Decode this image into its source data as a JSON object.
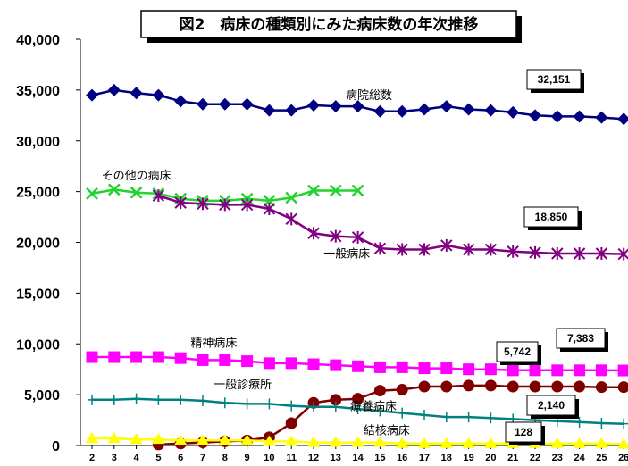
{
  "chart_data": {
    "type": "line",
    "title": "図2　病床の種類別にみた病床数の年次推移",
    "ylim": [
      0,
      40000
    ],
    "yticks": [
      0,
      5000,
      10000,
      15000,
      20000,
      25000,
      30000,
      35000,
      40000
    ],
    "ytick_labels": [
      "0",
      "5,000",
      "10,000",
      "15,000",
      "20,000",
      "25,000",
      "30,000",
      "35,000",
      "40,000"
    ],
    "x": [
      2,
      3,
      4,
      5,
      6,
      7,
      8,
      9,
      10,
      11,
      12,
      13,
      14,
      15,
      16,
      17,
      18,
      19,
      20,
      21,
      22,
      23,
      24,
      25,
      26
    ],
    "xtick_labels": [
      "2",
      "3",
      "4",
      "5",
      "6",
      "7",
      "8",
      "9",
      "10",
      "11",
      "12",
      "13",
      "14",
      "15",
      "16",
      "17",
      "18",
      "19",
      "20",
      "21",
      "22",
      "23",
      "24",
      "25",
      "26"
    ],
    "grid": false,
    "series": [
      {
        "name": "病院総数",
        "color": "#000080",
        "marker": "diamond",
        "values": [
          34500,
          35000,
          34700,
          34500,
          33900,
          33600,
          33600,
          33600,
          33000,
          33000,
          33500,
          33400,
          33400,
          32900,
          32900,
          33100,
          33400,
          33100,
          33000,
          32800,
          32500,
          32400,
          32400,
          32300,
          32151
        ]
      },
      {
        "name": "その他の病床",
        "color": "#22d32e",
        "marker": "x",
        "values": [
          24800,
          25200,
          24900,
          24800,
          24300,
          24100,
          24100,
          24300,
          24100,
          24400,
          25100,
          25100,
          25100,
          null,
          null,
          null,
          null,
          null,
          null,
          null,
          null,
          null,
          null,
          null,
          null
        ]
      },
      {
        "name": "一般病床",
        "color": "#800080",
        "marker": "asterisk",
        "values": [
          null,
          null,
          null,
          24600,
          23900,
          23800,
          23700,
          23700,
          23300,
          22300,
          20900,
          20600,
          20500,
          19400,
          19300,
          19300,
          19700,
          19300,
          19300,
          19100,
          19000,
          18900,
          18900,
          18900,
          18850
        ]
      },
      {
        "name": "精神病床",
        "color": "#ff00ff",
        "marker": "square",
        "values": [
          8700,
          8700,
          8700,
          8700,
          8600,
          8400,
          8400,
          8300,
          8100,
          8100,
          8000,
          7900,
          7800,
          7700,
          7700,
          7600,
          7600,
          7500,
          7500,
          7400,
          7400,
          7400,
          7400,
          7400,
          7383
        ]
      },
      {
        "name": "療養病床",
        "color": "#800000",
        "marker": "circle",
        "values": [
          null,
          null,
          null,
          100,
          200,
          300,
          400,
          500,
          800,
          2200,
          4200,
          4500,
          4600,
          5400,
          5500,
          5800,
          5800,
          5900,
          5900,
          5800,
          5800,
          5800,
          5800,
          5742,
          5742
        ]
      },
      {
        "name": "一般診療所",
        "color": "#008080",
        "marker": "plus",
        "values": [
          4500,
          4500,
          4600,
          4500,
          4500,
          4400,
          4200,
          4100,
          4100,
          3900,
          3800,
          3800,
          3600,
          3400,
          3200,
          3000,
          2800,
          2800,
          2700,
          2600,
          2500,
          2400,
          2300,
          2200,
          2140
        ]
      },
      {
        "name": "結核病床",
        "color": "#ffff00",
        "marker": "triangle",
        "values": [
          700,
          700,
          600,
          600,
          500,
          500,
          500,
          500,
          400,
          400,
          300,
          300,
          300,
          300,
          200,
          200,
          200,
          200,
          200,
          200,
          200,
          200,
          200,
          200,
          128
        ]
      }
    ],
    "callouts": [
      {
        "series": "病院総数",
        "text": "32,151"
      },
      {
        "series": "一般病床",
        "text": "18,850"
      },
      {
        "series": "精神病床",
        "text": "7,383"
      },
      {
        "series": "療養病床",
        "text": "5,742"
      },
      {
        "series": "一般診療所",
        "text": "2,140"
      },
      {
        "series": "結核病床",
        "text": "128"
      }
    ]
  }
}
